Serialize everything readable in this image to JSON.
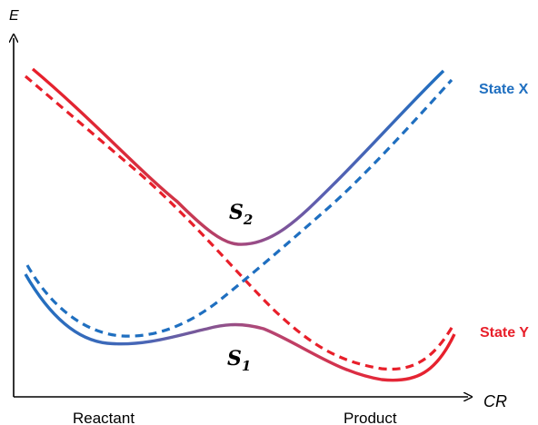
{
  "axes": {
    "y_label": "E",
    "x_label": "CR"
  },
  "states": {
    "x_label": "State X",
    "y_label": "State Y",
    "x_color": "#1f6fc0",
    "y_color": "#e81f2a"
  },
  "surfaces": {
    "s2_main": "S",
    "s2_sub": "2",
    "s1_main": "S",
    "s1_sub": "1",
    "mix_color": "#8b4aa0"
  },
  "x_ticks": {
    "reactant": "Reactant",
    "product": "Product"
  }
}
